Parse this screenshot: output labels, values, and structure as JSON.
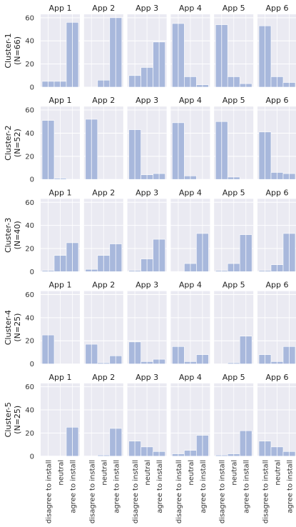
{
  "chart_data": {
    "type": "bar",
    "title": "",
    "xlabel": "",
    "ylabel": "",
    "categories": [
      "disagree to install",
      "neutral",
      "agree to install"
    ],
    "apps": [
      "App 1",
      "App 2",
      "App 3",
      "App 4",
      "App 5",
      "App 6"
    ],
    "ylim": [
      0,
      63
    ],
    "yticks": [
      0,
      20,
      40,
      60
    ],
    "grid": true,
    "bar_color": "#a8b8dc",
    "panel_background": "#eaeaf2",
    "clusters": [
      {
        "label": "Cluster-1",
        "n": "(N=66)",
        "values": [
          [
            5,
            5,
            56
          ],
          [
            0,
            6,
            60
          ],
          [
            10,
            17,
            39
          ],
          [
            55,
            9,
            2
          ],
          [
            54,
            9,
            3
          ],
          [
            53,
            9,
            4
          ]
        ]
      },
      {
        "label": "Cluster-2",
        "n": "(N=52)",
        "values": [
          [
            51,
            1,
            0
          ],
          [
            52,
            0,
            0
          ],
          [
            43,
            4,
            5
          ],
          [
            49,
            3,
            0
          ],
          [
            50,
            2,
            0
          ],
          [
            41,
            6,
            5
          ]
        ]
      },
      {
        "label": "Cluster-3",
        "n": "(N=40)",
        "values": [
          [
            1,
            14,
            25
          ],
          [
            2,
            14,
            24
          ],
          [
            1,
            11,
            28
          ],
          [
            0,
            7,
            33
          ],
          [
            1,
            7,
            32
          ],
          [
            1,
            6,
            33
          ]
        ]
      },
      {
        "label": "Cluster-4",
        "n": "(N=25)",
        "values": [
          [
            25,
            0,
            0
          ],
          [
            17,
            1,
            7
          ],
          [
            19,
            2,
            4
          ],
          [
            15,
            2,
            8
          ],
          [
            0,
            1,
            24
          ],
          [
            8,
            2,
            15
          ]
        ]
      },
      {
        "label": "Cluster-5",
        "n": "(N=25)",
        "values": [
          [
            0,
            0,
            25
          ],
          [
            0,
            1,
            24
          ],
          [
            13,
            8,
            4
          ],
          [
            2,
            5,
            18
          ],
          [
            1,
            2,
            22
          ],
          [
            13,
            8,
            4
          ]
        ]
      }
    ]
  }
}
